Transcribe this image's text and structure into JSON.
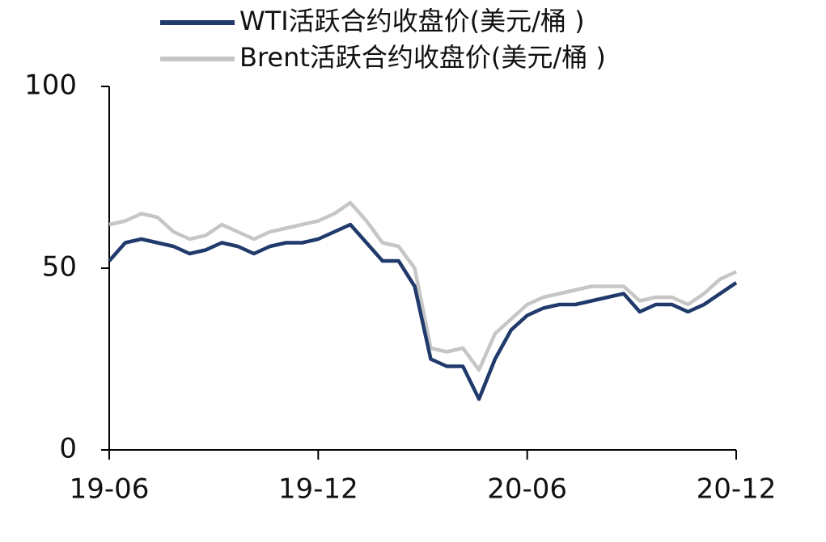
{
  "chart_data": {
    "type": "line",
    "categories": [
      "19-06",
      null,
      null,
      null,
      null,
      null,
      null,
      null,
      null,
      null,
      null,
      null,
      null,
      "19-12",
      null,
      null,
      null,
      null,
      null,
      null,
      null,
      null,
      null,
      null,
      null,
      null,
      "20-06",
      null,
      null,
      null,
      null,
      null,
      null,
      null,
      null,
      null,
      null,
      null,
      null,
      "20-12"
    ],
    "series": [
      {
        "name": "WTI活跃合约收盘价(美元/桶 )",
        "color": "#1f3a6b",
        "values": [
          52,
          57,
          58,
          57,
          56,
          54,
          55,
          57,
          56,
          54,
          56,
          57,
          57,
          58,
          60,
          62,
          57,
          52,
          52,
          45,
          25,
          23,
          23,
          14,
          25,
          33,
          37,
          39,
          40,
          40,
          41,
          42,
          43,
          38,
          40,
          40,
          38,
          40,
          43,
          46
        ]
      },
      {
        "name": "Brent活跃合约收盘价(美元/桶 )",
        "color": "#c6c6c6",
        "values": [
          62,
          63,
          65,
          64,
          60,
          58,
          59,
          62,
          60,
          58,
          60,
          61,
          62,
          63,
          65,
          68,
          63,
          57,
          56,
          50,
          28,
          27,
          28,
          22,
          32,
          36,
          40,
          42,
          43,
          44,
          45,
          45,
          45,
          41,
          42,
          42,
          40,
          43,
          47,
          49
        ]
      }
    ],
    "ylim": [
      0,
      100
    ],
    "yticks": [
      0,
      50,
      100
    ],
    "grid": false,
    "legend": "top"
  }
}
